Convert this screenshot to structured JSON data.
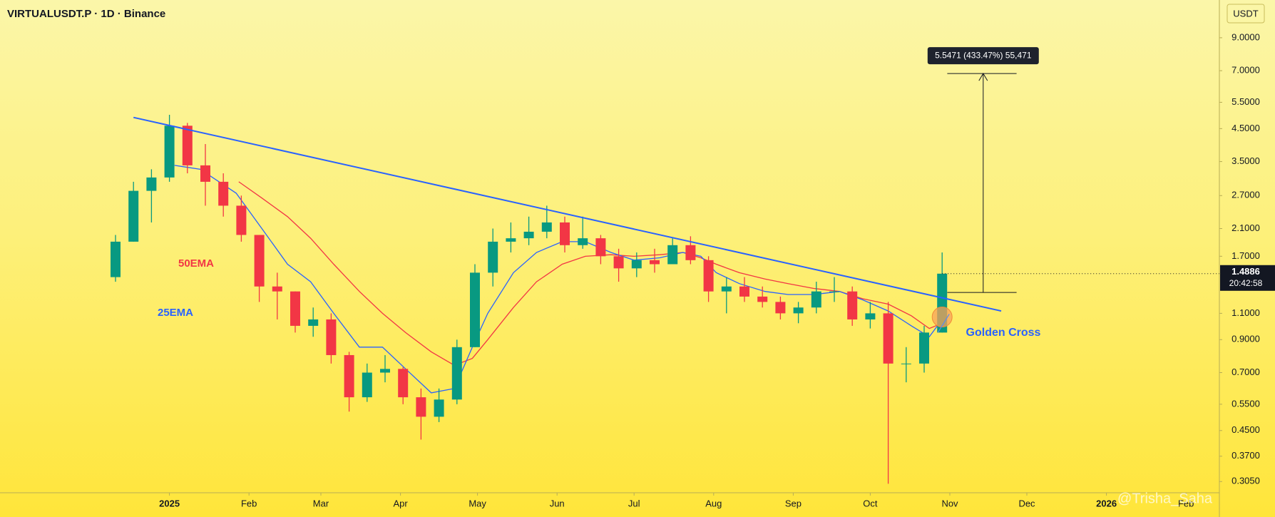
{
  "chart_data": {
    "type": "candlestick",
    "title": "VIRTUALUSDT.P · 1D · Binance",
    "y_unit": "USDT",
    "log_scale": true,
    "grid": false,
    "up_color": "#089981",
    "down_color": "#f23645",
    "xlim": [
      -66,
      409
    ],
    "xticks": [
      {
        "value": 0,
        "label": "2025"
      },
      {
        "value": 31,
        "label": "Feb"
      },
      {
        "value": 59,
        "label": "Mar"
      },
      {
        "value": 90,
        "label": "Apr"
      },
      {
        "value": 120,
        "label": "May"
      },
      {
        "value": 151,
        "label": "Jun"
      },
      {
        "value": 181,
        "label": "Jul"
      },
      {
        "value": 212,
        "label": "Aug"
      },
      {
        "value": 243,
        "label": "Sep"
      },
      {
        "value": 273,
        "label": "Oct"
      },
      {
        "value": 304,
        "label": "Nov"
      },
      {
        "value": 334,
        "label": "Dec"
      },
      {
        "value": 365,
        "label": "2026"
      },
      {
        "value": 396,
        "label": "Feb"
      }
    ],
    "ylim": [
      0.28,
      12.0
    ],
    "yticks": [
      {
        "value": 0.305,
        "label": "0.3050"
      },
      {
        "value": 0.37,
        "label": "0.3700"
      },
      {
        "value": 0.45,
        "label": "0.4500"
      },
      {
        "value": 0.55,
        "label": "0.5500"
      },
      {
        "value": 0.7,
        "label": "0.7000"
      },
      {
        "value": 0.9,
        "label": "0.9000"
      },
      {
        "value": 1.1,
        "label": "1.1000"
      },
      {
        "value": 1.7,
        "label": "1.7000"
      },
      {
        "value": 2.1,
        "label": "2.1000"
      },
      {
        "value": 2.7,
        "label": "2.7000"
      },
      {
        "value": 3.5,
        "label": "3.5000"
      },
      {
        "value": 4.5,
        "label": "4.5000"
      },
      {
        "value": 5.5,
        "label": "5.5000"
      },
      {
        "value": 7.0,
        "label": "7.0000"
      },
      {
        "value": 9.0,
        "label": "9.0000"
      }
    ],
    "x": [
      -21,
      -14,
      -7,
      0,
      7,
      14,
      21,
      28,
      35,
      42,
      49,
      56,
      63,
      70,
      77,
      84,
      91,
      98,
      105,
      112,
      119,
      126,
      133,
      140,
      147,
      154,
      161,
      168,
      175,
      182,
      189,
      196,
      203,
      210,
      217,
      224,
      231,
      238,
      245,
      252,
      259,
      266,
      273,
      280,
      287,
      294,
      301
    ],
    "open": [
      1.45,
      1.9,
      2.8,
      3.1,
      4.6,
      3.4,
      3.0,
      2.5,
      2.0,
      1.35,
      1.3,
      1.0,
      1.05,
      0.8,
      0.58,
      0.7,
      0.72,
      0.58,
      0.5,
      0.57,
      0.85,
      1.5,
      1.9,
      1.95,
      2.05,
      2.2,
      1.85,
      1.95,
      1.7,
      1.55,
      1.65,
      1.6,
      1.85,
      1.65,
      1.3,
      1.35,
      1.25,
      1.2,
      1.1,
      1.15,
      1.3,
      1.3,
      1.05,
      1.1,
      0.75,
      0.75,
      0.95
    ],
    "high": [
      2.0,
      3.0,
      3.3,
      5.0,
      4.7,
      4.0,
      3.2,
      2.7,
      2.0,
      1.5,
      1.3,
      1.15,
      1.1,
      0.82,
      0.75,
      0.8,
      0.73,
      0.62,
      0.62,
      0.9,
      1.6,
      2.1,
      2.2,
      2.3,
      2.5,
      2.3,
      2.3,
      2.0,
      1.8,
      1.75,
      1.8,
      1.95,
      1.98,
      1.7,
      1.45,
      1.45,
      1.35,
      1.25,
      1.2,
      1.4,
      1.45,
      1.35,
      1.2,
      1.2,
      0.85,
      1.0,
      1.75
    ],
    "low": [
      1.4,
      1.9,
      2.2,
      3.0,
      3.2,
      2.5,
      2.3,
      1.9,
      1.2,
      1.05,
      0.95,
      0.92,
      0.75,
      0.52,
      0.56,
      0.65,
      0.55,
      0.42,
      0.48,
      0.55,
      0.85,
      1.35,
      1.75,
      1.85,
      1.95,
      1.75,
      1.8,
      1.6,
      1.4,
      1.45,
      1.5,
      1.6,
      1.6,
      1.2,
      1.1,
      1.2,
      1.15,
      1.05,
      1.02,
      1.1,
      1.2,
      1.0,
      0.98,
      0.3,
      0.65,
      0.7,
      0.95
    ],
    "close": [
      1.9,
      2.8,
      3.1,
      4.6,
      3.4,
      3.0,
      2.5,
      2.0,
      1.35,
      1.3,
      1.0,
      1.05,
      0.8,
      0.58,
      0.7,
      0.72,
      0.58,
      0.5,
      0.57,
      0.85,
      1.5,
      1.9,
      1.95,
      2.05,
      2.2,
      1.85,
      1.95,
      1.7,
      1.55,
      1.65,
      1.6,
      1.85,
      1.65,
      1.3,
      1.35,
      1.25,
      1.2,
      1.1,
      1.15,
      1.3,
      1.3,
      1.05,
      1.1,
      0.75,
      0.75,
      0.95,
      1.4886
    ],
    "series": [
      {
        "name": "50EMA",
        "color": "#f23645",
        "x": [
          27,
          36,
          46,
          55,
          64,
          74,
          83,
          92,
          102,
          111,
          118,
          124,
          134,
          143,
          153,
          162,
          172,
          181,
          191,
          200,
          207,
          213,
          222,
          232,
          241,
          251,
          261,
          270,
          280,
          289,
          296,
          301
        ],
        "values": [
          3.0,
          2.65,
          2.3,
          1.95,
          1.6,
          1.3,
          1.1,
          0.95,
          0.82,
          0.74,
          0.78,
          0.9,
          1.15,
          1.4,
          1.6,
          1.7,
          1.72,
          1.7,
          1.72,
          1.75,
          1.68,
          1.6,
          1.5,
          1.43,
          1.38,
          1.33,
          1.3,
          1.23,
          1.18,
          1.08,
          0.98,
          1.02
        ]
      },
      {
        "name": "25EMA",
        "color": "#2962ff",
        "x": [
          2,
          12,
          26,
          36,
          46,
          55,
          64,
          74,
          83,
          92,
          102,
          111,
          118,
          124,
          134,
          143,
          153,
          162,
          172,
          181,
          191,
          200,
          207,
          213,
          222,
          232,
          241,
          251,
          261,
          270,
          280,
          289,
          296,
          301
        ],
        "values": [
          3.4,
          3.3,
          2.75,
          2.1,
          1.6,
          1.4,
          1.1,
          0.85,
          0.85,
          0.72,
          0.6,
          0.62,
          0.85,
          1.1,
          1.5,
          1.75,
          1.9,
          1.9,
          1.75,
          1.65,
          1.68,
          1.75,
          1.7,
          1.5,
          1.38,
          1.3,
          1.27,
          1.27,
          1.3,
          1.22,
          1.12,
          1.0,
          0.92,
          1.05
        ]
      }
    ],
    "trendline": {
      "color": "#2962ff",
      "x": [
        -14,
        324
      ],
      "values": [
        4.9,
        1.12
      ]
    },
    "measure": {
      "label": "5.5471 (433.47%) 55,471",
      "x": [
        303,
        330
      ],
      "arrow_x": 317,
      "from": 1.29,
      "to": 6.85
    },
    "golden_cross": {
      "label": "Golden Cross",
      "x": 301,
      "value": 1.07
    },
    "last_price": 1.4886,
    "countdown": "20:42:58",
    "watermark": "@Trisha_Saha"
  }
}
